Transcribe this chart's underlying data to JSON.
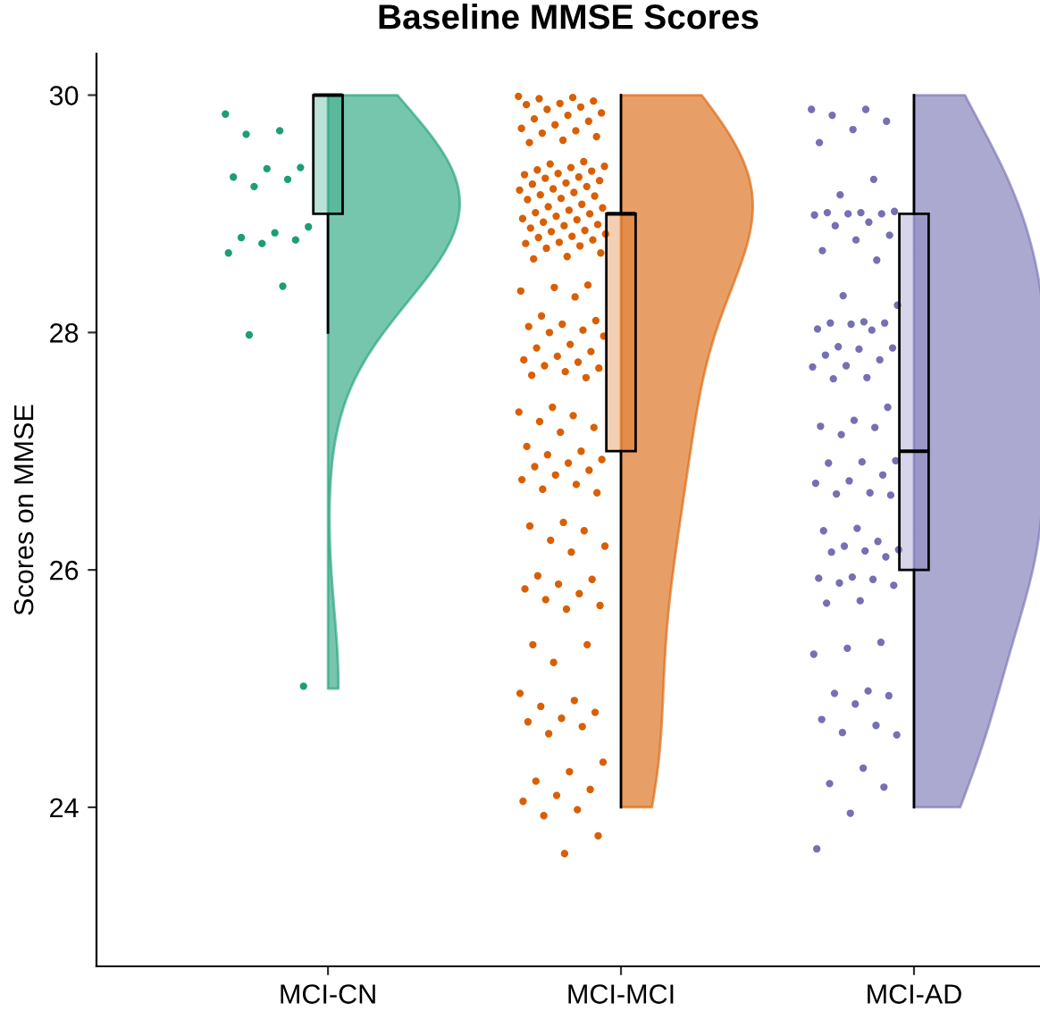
{
  "chart_data": {
    "type": "box",
    "title": "Baseline MMSE Scores",
    "ylabel": "Scores on MMSE",
    "categories": [
      "MCI-CN",
      "MCI-MCI",
      "MCI-AD"
    ],
    "colors": [
      "#1b9e77",
      "#d95f02",
      "#7570b3"
    ],
    "boxes": [
      {
        "low": 28,
        "q1": 29,
        "median": 30,
        "q3": 30,
        "high": 30
      },
      {
        "low": 24,
        "q1": 27,
        "median": 29,
        "q3": 29,
        "high": 30
      },
      {
        "low": 24,
        "q1": 26,
        "median": 27,
        "q3": 29,
        "high": 30
      }
    ],
    "series": [
      {
        "type": "scatter",
        "color": "#1b9e77",
        "x": [
          "MCI-CN",
          "MCI-CN",
          "MCI-CN",
          "MCI-CN",
          "MCI-CN",
          "MCI-CN",
          "MCI-CN",
          "MCI-CN",
          "MCI-CN",
          "MCI-CN",
          "MCI-CN",
          "MCI-CN",
          "MCI-CN",
          "MCI-CN",
          "MCI-CN",
          "MCI-CN",
          "MCI-CN"
        ],
        "values": [
          29.84,
          29.7,
          29.67,
          29.39,
          29.38,
          29.31,
          29.29,
          29.23,
          28.89,
          28.84,
          28.8,
          28.78,
          28.75,
          28.67,
          28.39,
          27.98,
          25.02
        ]
      },
      {
        "type": "scatter",
        "color": "#d95f02",
        "x": [
          "MCI-MCI",
          "MCI-MCI",
          "MCI-MCI",
          "MCI-MCI",
          "MCI-MCI",
          "MCI-MCI",
          "MCI-MCI",
          "MCI-MCI",
          "MCI-MCI",
          "MCI-MCI",
          "MCI-MCI",
          "MCI-MCI",
          "MCI-MCI",
          "MCI-MCI",
          "MCI-MCI",
          "MCI-MCI",
          "MCI-MCI",
          "MCI-MCI",
          "MCI-MCI",
          "MCI-MCI",
          "MCI-MCI",
          "MCI-MCI",
          "MCI-MCI",
          "MCI-MCI",
          "MCI-MCI",
          "MCI-MCI",
          "MCI-MCI",
          "MCI-MCI",
          "MCI-MCI",
          "MCI-MCI",
          "MCI-MCI",
          "MCI-MCI",
          "MCI-MCI",
          "MCI-MCI",
          "MCI-MCI",
          "MCI-MCI",
          "MCI-MCI",
          "MCI-MCI",
          "MCI-MCI",
          "MCI-MCI",
          "MCI-MCI",
          "MCI-MCI",
          "MCI-MCI",
          "MCI-MCI",
          "MCI-MCI",
          "MCI-MCI",
          "MCI-MCI",
          "MCI-MCI",
          "MCI-MCI",
          "MCI-MCI",
          "MCI-MCI",
          "MCI-MCI",
          "MCI-MCI",
          "MCI-MCI",
          "MCI-MCI",
          "MCI-MCI",
          "MCI-MCI",
          "MCI-MCI",
          "MCI-MCI",
          "MCI-MCI",
          "MCI-MCI",
          "MCI-MCI",
          "MCI-MCI",
          "MCI-MCI",
          "MCI-MCI",
          "MCI-MCI",
          "MCI-MCI",
          "MCI-MCI",
          "MCI-MCI",
          "MCI-MCI",
          "MCI-MCI",
          "MCI-MCI",
          "MCI-MCI",
          "MCI-MCI",
          "MCI-MCI",
          "MCI-MCI",
          "MCI-MCI",
          "MCI-MCI",
          "MCI-MCI",
          "MCI-MCI",
          "MCI-MCI",
          "MCI-MCI",
          "MCI-MCI",
          "MCI-MCI",
          "MCI-MCI",
          "MCI-MCI",
          "MCI-MCI",
          "MCI-MCI",
          "MCI-MCI",
          "MCI-MCI",
          "MCI-MCI",
          "MCI-MCI",
          "MCI-MCI",
          "MCI-MCI",
          "MCI-MCI",
          "MCI-MCI",
          "MCI-MCI",
          "MCI-MCI",
          "MCI-MCI",
          "MCI-MCI",
          "MCI-MCI",
          "MCI-MCI",
          "MCI-MCI",
          "MCI-MCI",
          "MCI-MCI",
          "MCI-MCI",
          "MCI-MCI",
          "MCI-MCI",
          "MCI-MCI",
          "MCI-MCI",
          "MCI-MCI",
          "MCI-MCI",
          "MCI-MCI",
          "MCI-MCI",
          "MCI-MCI",
          "MCI-MCI",
          "MCI-MCI",
          "MCI-MCI",
          "MCI-MCI",
          "MCI-MCI",
          "MCI-MCI",
          "MCI-MCI",
          "MCI-MCI",
          "MCI-MCI",
          "MCI-MCI",
          "MCI-MCI",
          "MCI-MCI",
          "MCI-MCI",
          "MCI-MCI",
          "MCI-MCI",
          "MCI-MCI",
          "MCI-MCI",
          "MCI-MCI",
          "MCI-MCI",
          "MCI-MCI",
          "MCI-MCI",
          "MCI-MCI",
          "MCI-MCI",
          "MCI-MCI",
          "MCI-MCI",
          "MCI-MCI"
        ],
        "values": [
          29.99,
          29.98,
          29.97,
          29.95,
          29.93,
          29.92,
          29.9,
          29.88,
          29.85,
          29.83,
          29.8,
          29.78,
          29.75,
          29.72,
          29.7,
          29.68,
          29.65,
          29.62,
          29.6,
          29.44,
          29.42,
          29.4,
          29.39,
          29.37,
          29.36,
          29.34,
          29.33,
          29.31,
          29.3,
          29.28,
          29.26,
          29.25,
          29.23,
          29.21,
          29.2,
          29.18,
          29.16,
          29.15,
          29.13,
          29.12,
          29.08,
          29.06,
          29.05,
          29.03,
          29.01,
          29.0,
          28.98,
          28.96,
          28.95,
          28.93,
          28.91,
          28.9,
          28.88,
          28.86,
          28.85,
          28.83,
          28.81,
          28.8,
          28.78,
          28.76,
          28.75,
          28.73,
          28.71,
          28.67,
          28.64,
          28.62,
          28.4,
          28.38,
          28.35,
          28.3,
          28.14,
          28.1,
          28.07,
          28.05,
          28.02,
          28.0,
          27.97,
          27.9,
          27.87,
          27.84,
          27.8,
          27.77,
          27.75,
          27.72,
          27.7,
          27.67,
          27.64,
          27.62,
          27.37,
          27.33,
          27.3,
          27.25,
          27.2,
          27.16,
          27.04,
          27.0,
          26.97,
          26.93,
          26.9,
          26.87,
          26.84,
          26.8,
          26.76,
          26.72,
          26.68,
          26.65,
          26.4,
          26.37,
          26.33,
          26.25,
          26.2,
          26.15,
          25.95,
          25.92,
          25.88,
          25.84,
          25.8,
          25.75,
          25.7,
          25.67,
          25.37,
          25.37,
          25.22,
          24.96,
          24.9,
          24.85,
          24.8,
          24.75,
          24.72,
          24.68,
          24.62,
          24.38,
          24.3,
          24.22,
          24.15,
          24.1,
          24.05,
          23.98,
          23.93,
          23.76,
          23.61
        ]
      },
      {
        "type": "scatter",
        "color": "#7570b3",
        "x": [
          "MCI-AD",
          "MCI-AD",
          "MCI-AD",
          "MCI-AD",
          "MCI-AD",
          "MCI-AD",
          "MCI-AD",
          "MCI-AD",
          "MCI-AD",
          "MCI-AD",
          "MCI-AD",
          "MCI-AD",
          "MCI-AD",
          "MCI-AD",
          "MCI-AD",
          "MCI-AD",
          "MCI-AD",
          "MCI-AD",
          "MCI-AD",
          "MCI-AD",
          "MCI-AD",
          "MCI-AD",
          "MCI-AD",
          "MCI-AD",
          "MCI-AD",
          "MCI-AD",
          "MCI-AD",
          "MCI-AD",
          "MCI-AD",
          "MCI-AD",
          "MCI-AD",
          "MCI-AD",
          "MCI-AD",
          "MCI-AD",
          "MCI-AD",
          "MCI-AD",
          "MCI-AD",
          "MCI-AD",
          "MCI-AD",
          "MCI-AD",
          "MCI-AD",
          "MCI-AD",
          "MCI-AD",
          "MCI-AD",
          "MCI-AD",
          "MCI-AD",
          "MCI-AD",
          "MCI-AD",
          "MCI-AD",
          "MCI-AD",
          "MCI-AD",
          "MCI-AD",
          "MCI-AD",
          "MCI-AD",
          "MCI-AD",
          "MCI-AD",
          "MCI-AD",
          "MCI-AD",
          "MCI-AD",
          "MCI-AD",
          "MCI-AD",
          "MCI-AD",
          "MCI-AD",
          "MCI-AD",
          "MCI-AD",
          "MCI-AD",
          "MCI-AD",
          "MCI-AD",
          "MCI-AD",
          "MCI-AD",
          "MCI-AD",
          "MCI-AD",
          "MCI-AD",
          "MCI-AD",
          "MCI-AD",
          "MCI-AD",
          "MCI-AD",
          "MCI-AD",
          "MCI-AD",
          "MCI-AD",
          "MCI-AD",
          "MCI-AD"
        ],
        "values": [
          29.88,
          29.88,
          29.83,
          29.78,
          29.71,
          29.6,
          29.29,
          29.16,
          29.02,
          29.01,
          29.01,
          29.0,
          29.0,
          28.99,
          28.93,
          28.9,
          28.82,
          28.78,
          28.69,
          28.61,
          28.31,
          28.23,
          28.09,
          28.08,
          28.08,
          28.07,
          28.03,
          28.02,
          27.88,
          27.87,
          27.86,
          27.81,
          27.77,
          27.72,
          27.71,
          27.62,
          27.61,
          27.37,
          27.26,
          27.21,
          27.2,
          27.14,
          26.92,
          26.91,
          26.9,
          26.8,
          26.75,
          26.73,
          26.65,
          26.64,
          26.63,
          26.35,
          26.33,
          26.24,
          26.2,
          26.17,
          26.16,
          26.15,
          26.11,
          25.94,
          25.93,
          25.92,
          25.89,
          25.87,
          25.74,
          25.72,
          25.39,
          25.34,
          25.29,
          24.98,
          24.96,
          24.94,
          24.87,
          24.74,
          24.69,
          24.63,
          24.61,
          24.33,
          24.2,
          24.17,
          23.95,
          23.65
        ]
      }
    ],
    "ylim": [
      22.66,
      30.35
    ],
    "yticks": [
      24,
      26,
      28,
      30
    ],
    "grid": false,
    "legend": false,
    "marker": "circle"
  }
}
